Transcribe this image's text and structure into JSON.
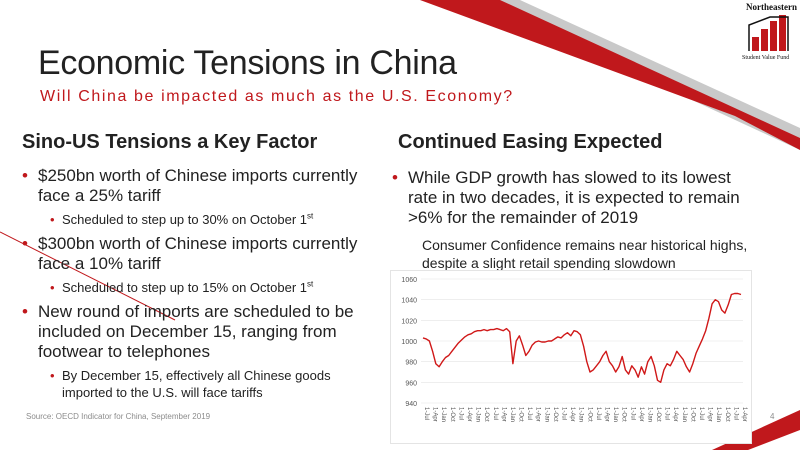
{
  "logo": {
    "name": "Northeastern",
    "tagline": "Student Value Fund"
  },
  "title": "Economic Tensions in China",
  "subtitle": "Will China be impacted as much as the U.S. Economy?",
  "left": {
    "heading": "Sino-US Tensions a Key Factor",
    "bullets": [
      {
        "text": "$250bn worth of Chinese imports currently face a 25% tariff",
        "sub": {
          "text": "Scheduled to step up to 30% on October 1",
          "sup": "st"
        }
      },
      {
        "text": "$300bn worth of Chinese imports currently face a 10% tariff",
        "sub": {
          "text": "Scheduled to step up to 15% on October 1",
          "sup": "st"
        }
      },
      {
        "text": "New round of imports are scheduled to be included on December 15, ranging from footwear to telephones",
        "sub": {
          "text": "By December 15, effectively all Chinese goods imported to the U.S. will face tariffs"
        }
      }
    ]
  },
  "right": {
    "heading": "Continued Easing Expected",
    "bullet": "While GDP growth has slowed to its lowest rate in two decades, it is expected to remain >6% for the remainder of 2019",
    "chart_caption": "Consumer Confidence remains near historical highs, despite a slight retail spending slowdown"
  },
  "source": "Source: OECD Indicator for China, September 2019",
  "page_number": "4",
  "colors": {
    "accent": "#c0181c",
    "text": "#222222",
    "muted": "#8c8c8c"
  },
  "chart_data": {
    "type": "line",
    "title": "",
    "xlabel": "",
    "ylabel": "",
    "ylim": [
      940,
      1060
    ],
    "yticks": [
      940,
      960,
      980,
      1000,
      1020,
      1040,
      1060
    ],
    "xticks": [
      "1-Jul",
      "1-Apr",
      "1-Jan",
      "1-Oct",
      "1-Jul",
      "1-Apr",
      "1-Jan",
      "1-Oct",
      "1-Jul",
      "1-Apr",
      "1-Jan",
      "1-Oct",
      "1-Jul",
      "1-Apr",
      "1-Jan",
      "1-Oct",
      "1-Jul",
      "1-Apr",
      "1-Jan",
      "1-Oct",
      "1-Jul",
      "1-Apr",
      "1-Jan",
      "1-Oct",
      "1-Jul",
      "1-Apr",
      "1-Jan",
      "1-Oct",
      "1-Jul",
      "1-Apr",
      "1-Jan",
      "1-Oct",
      "1-Jul",
      "1-Apr",
      "1-Jan",
      "1-Oct",
      "1-Jul",
      "1-Apr"
    ],
    "series": [
      {
        "color": "#d01818",
        "values": [
          1003,
          1002,
          1000,
          990,
          978,
          975,
          980,
          984,
          986,
          990,
          994,
          998,
          1001,
          1004,
          1006,
          1007,
          1009,
          1010,
          1010,
          1011,
          1010,
          1011,
          1011,
          1012,
          1011,
          1010,
          1012,
          1009,
          978,
          1000,
          1005,
          996,
          986,
          990,
          996,
          999,
          1000,
          999,
          999,
          1000,
          1000,
          1002,
          1004,
          1003,
          1006,
          1008,
          1005,
          1010,
          1009,
          1006,
          995,
          980,
          970,
          972,
          976,
          980,
          986,
          990,
          980,
          976,
          970,
          975,
          985,
          972,
          968,
          976,
          972,
          965,
          975,
          968,
          980,
          985,
          976,
          962,
          960,
          972,
          978,
          976,
          982,
          990,
          986,
          982,
          975,
          970,
          978,
          988,
          995,
          1002,
          1010,
          1022,
          1036,
          1040,
          1038,
          1030,
          1027,
          1035,
          1045,
          1046,
          1046,
          1045
        ]
      }
    ]
  }
}
